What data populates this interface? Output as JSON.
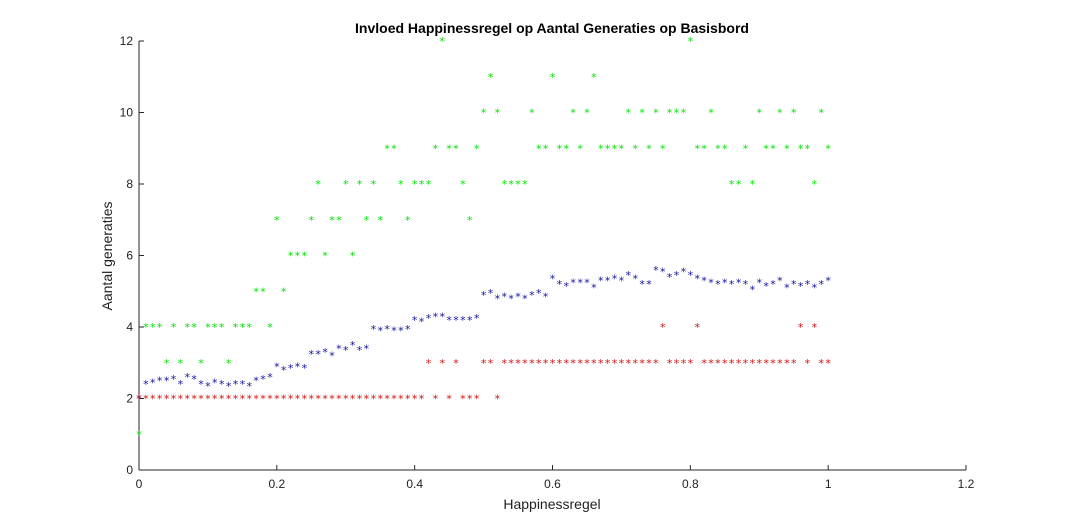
{
  "chart_data": {
    "type": "scatter",
    "title": "Invloed Happinessregel op Aantal Generaties op Basisbord",
    "xlabel": "Happinessregel",
    "ylabel": "Aantal generaties",
    "xlim": [
      0,
      1.2
    ],
    "ylim": [
      0,
      12
    ],
    "x_ticks": [
      "0",
      "0.2",
      "0.4",
      "0.6",
      "0.8",
      "1",
      "1.2"
    ],
    "y_ticks": [
      "0",
      "2",
      "4",
      "6",
      "8",
      "10",
      "12"
    ],
    "grid": false,
    "marker": "*",
    "series": [
      {
        "color": "#00e000",
        "x": [
          0,
          0.01,
          0.02,
          0.03,
          0.04,
          0.05,
          0.06,
          0.07,
          0.08,
          0.09,
          0.1,
          0.11,
          0.12,
          0.13,
          0.14,
          0.15,
          0.16,
          0.17,
          0.18,
          0.19,
          0.2,
          0.21,
          0.22,
          0.23,
          0.24,
          0.25,
          0.26,
          0.27,
          0.28,
          0.29,
          0.3,
          0.31,
          0.32,
          0.33,
          0.34,
          0.35,
          0.36,
          0.37,
          0.38,
          0.39,
          0.4,
          0.41,
          0.42,
          0.43,
          0.44,
          0.45,
          0.46,
          0.47,
          0.48,
          0.49,
          0.5,
          0.51,
          0.52,
          0.53,
          0.54,
          0.55,
          0.56,
          0.57,
          0.58,
          0.59,
          0.6,
          0.61,
          0.62,
          0.63,
          0.64,
          0.65,
          0.66,
          0.67,
          0.68,
          0.69,
          0.7,
          0.71,
          0.72,
          0.73,
          0.74,
          0.75,
          0.76,
          0.77,
          0.78,
          0.79,
          0.8,
          0.81,
          0.82,
          0.83,
          0.84,
          0.85,
          0.86,
          0.87,
          0.88,
          0.89,
          0.9,
          0.91,
          0.92,
          0.93,
          0.94,
          0.95,
          0.96,
          0.97,
          0.98,
          0.99,
          1.0
        ],
        "y": [
          1,
          4,
          4,
          4,
          3,
          4,
          3,
          4,
          4,
          3,
          4,
          4,
          4,
          3,
          4,
          4,
          4,
          5,
          5,
          4,
          7,
          5,
          6,
          6,
          6,
          7,
          8,
          6,
          7,
          7,
          8,
          6,
          8,
          7,
          8,
          7,
          9,
          9,
          8,
          7,
          8,
          8,
          8,
          9,
          12,
          9,
          9,
          8,
          7,
          9,
          10,
          11,
          10,
          8,
          8,
          8,
          8,
          10,
          9,
          9,
          11,
          9,
          9,
          10,
          9,
          10,
          11,
          9,
          9,
          9,
          9,
          10,
          9,
          10,
          9,
          10,
          9,
          10,
          10,
          10,
          12,
          9,
          9,
          10,
          9,
          9,
          8,
          8,
          9,
          8,
          10,
          9,
          9,
          10,
          9,
          10,
          9,
          9,
          8,
          10,
          9
        ]
      },
      {
        "color": "#1010a0",
        "x": [
          0,
          0.01,
          0.02,
          0.03,
          0.04,
          0.05,
          0.06,
          0.07,
          0.08,
          0.09,
          0.1,
          0.11,
          0.12,
          0.13,
          0.14,
          0.15,
          0.16,
          0.17,
          0.18,
          0.19,
          0.2,
          0.21,
          0.22,
          0.23,
          0.24,
          0.25,
          0.26,
          0.27,
          0.28,
          0.29,
          0.3,
          0.31,
          0.32,
          0.33,
          0.34,
          0.35,
          0.36,
          0.37,
          0.38,
          0.39,
          0.4,
          0.41,
          0.42,
          0.43,
          0.44,
          0.45,
          0.46,
          0.47,
          0.48,
          0.49,
          0.5,
          0.51,
          0.52,
          0.53,
          0.54,
          0.55,
          0.56,
          0.57,
          0.58,
          0.59,
          0.6,
          0.61,
          0.62,
          0.63,
          0.64,
          0.65,
          0.66,
          0.67,
          0.68,
          0.69,
          0.7,
          0.71,
          0.72,
          0.73,
          0.74,
          0.75,
          0.76,
          0.77,
          0.78,
          0.79,
          0.8,
          0.81,
          0.82,
          0.83,
          0.84,
          0.85,
          0.86,
          0.87,
          0.88,
          0.89,
          0.9,
          0.91,
          0.92,
          0.93,
          0.94,
          0.95,
          0.96,
          0.97,
          0.98,
          0.99,
          1.0
        ],
        "y": [
          2.0,
          2.4,
          2.45,
          2.5,
          2.5,
          2.55,
          2.4,
          2.6,
          2.55,
          2.4,
          2.35,
          2.45,
          2.4,
          2.35,
          2.4,
          2.4,
          2.35,
          2.5,
          2.55,
          2.6,
          2.9,
          2.8,
          2.85,
          2.9,
          2.85,
          3.25,
          3.25,
          3.3,
          3.2,
          3.4,
          3.35,
          3.5,
          3.35,
          3.4,
          3.95,
          3.9,
          3.95,
          3.9,
          3.9,
          3.95,
          4.2,
          4.15,
          4.25,
          4.3,
          4.3,
          4.2,
          4.2,
          4.2,
          4.2,
          4.25,
          4.9,
          4.95,
          4.8,
          4.85,
          4.8,
          4.85,
          4.8,
          4.9,
          4.95,
          4.85,
          5.35,
          5.2,
          5.15,
          5.25,
          5.25,
          5.25,
          5.1,
          5.3,
          5.3,
          5.35,
          5.3,
          5.45,
          5.35,
          5.2,
          5.2,
          5.6,
          5.55,
          5.4,
          5.45,
          5.55,
          5.45,
          5.35,
          5.3,
          5.25,
          5.2,
          5.25,
          5.2,
          5.25,
          5.2,
          5.05,
          5.25,
          5.15,
          5.2,
          5.3,
          5.1,
          5.2,
          5.15,
          5.2,
          5.1,
          5.2,
          5.3
        ]
      },
      {
        "color": "#d01010",
        "x": [
          0,
          0.01,
          0.02,
          0.03,
          0.04,
          0.05,
          0.06,
          0.07,
          0.08,
          0.09,
          0.1,
          0.11,
          0.12,
          0.13,
          0.14,
          0.15,
          0.16,
          0.17,
          0.18,
          0.19,
          0.2,
          0.21,
          0.22,
          0.23,
          0.24,
          0.25,
          0.26,
          0.27,
          0.28,
          0.29,
          0.3,
          0.31,
          0.32,
          0.33,
          0.34,
          0.35,
          0.36,
          0.37,
          0.38,
          0.39,
          0.4,
          0.41,
          0.42,
          0.43,
          0.44,
          0.45,
          0.46,
          0.47,
          0.48,
          0.49,
          0.5,
          0.51,
          0.52,
          0.53,
          0.54,
          0.55,
          0.56,
          0.57,
          0.58,
          0.59,
          0.6,
          0.61,
          0.62,
          0.63,
          0.64,
          0.65,
          0.66,
          0.67,
          0.68,
          0.69,
          0.7,
          0.71,
          0.72,
          0.73,
          0.74,
          0.75,
          0.76,
          0.77,
          0.78,
          0.79,
          0.8,
          0.81,
          0.82,
          0.83,
          0.84,
          0.85,
          0.86,
          0.87,
          0.88,
          0.89,
          0.9,
          0.91,
          0.92,
          0.93,
          0.94,
          0.95,
          0.96,
          0.97,
          0.98,
          0.99,
          1.0
        ],
        "y": [
          2,
          2,
          2,
          2,
          2,
          2,
          2,
          2,
          2,
          2,
          2,
          2,
          2,
          2,
          2,
          2,
          2,
          2,
          2,
          2,
          2,
          2,
          2,
          2,
          2,
          2,
          2,
          2,
          2,
          2,
          2,
          2,
          2,
          2,
          2,
          2,
          2,
          2,
          2,
          2,
          2,
          2,
          3,
          2,
          3,
          2,
          3,
          2,
          2,
          2,
          3,
          3,
          2,
          3,
          3,
          3,
          3,
          3,
          3,
          3,
          3,
          3,
          3,
          3,
          3,
          3,
          3,
          3,
          3,
          3,
          3,
          3,
          3,
          3,
          3,
          3,
          4,
          3,
          3,
          3,
          3,
          4,
          3,
          3,
          3,
          3,
          3,
          3,
          3,
          3,
          3,
          3,
          3,
          3,
          3,
          3,
          4,
          3,
          4,
          3,
          3
        ]
      }
    ]
  }
}
